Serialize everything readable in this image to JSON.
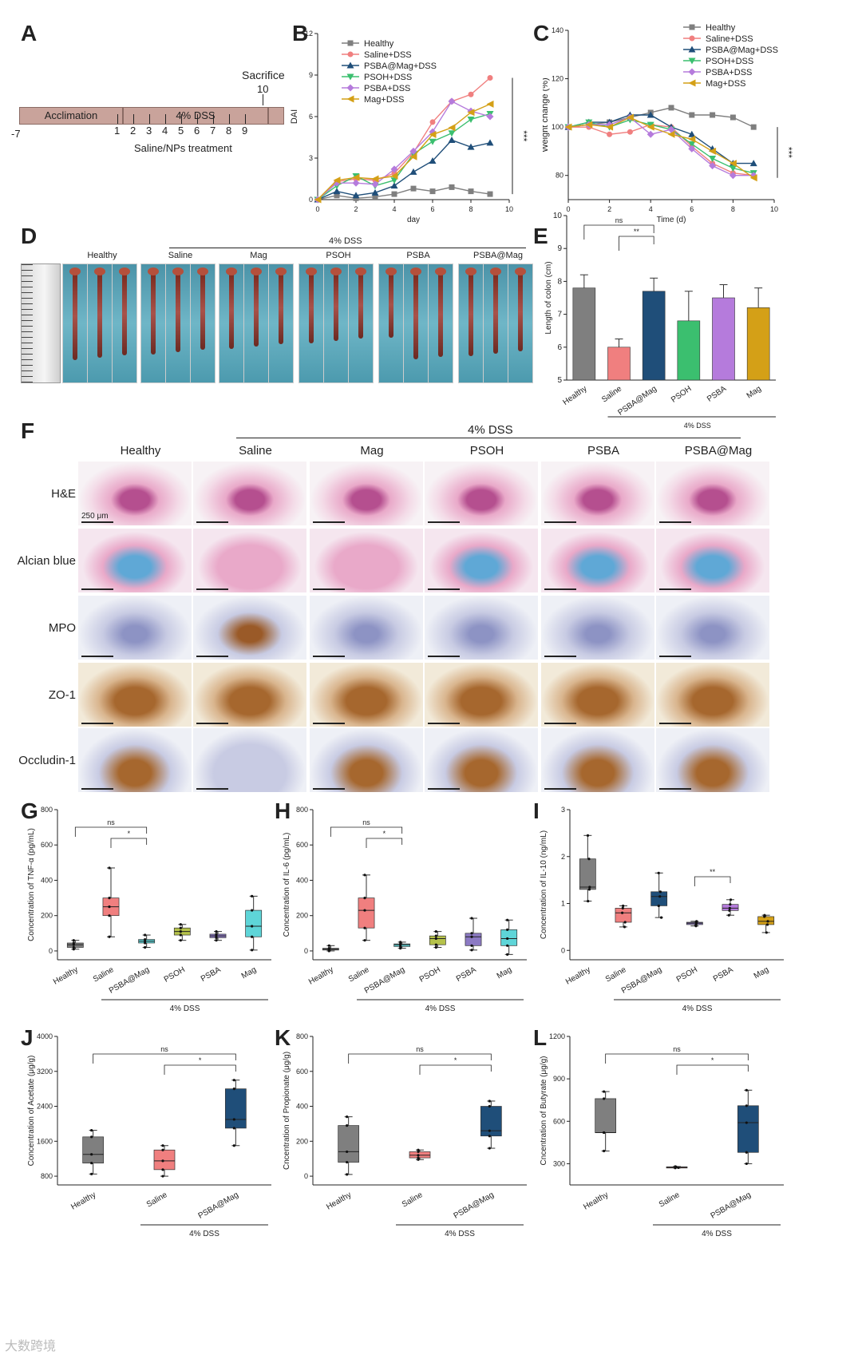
{
  "panels": {
    "A": {
      "letter": "A",
      "acclimation": "Acclimation",
      "dss": "4% DSS",
      "sacrifice": "Sacrifice",
      "sacrifice_day": "10",
      "start_day": "-7",
      "days": [
        "1",
        "2",
        "3",
        "4",
        "5",
        "6",
        "7",
        "8",
        "9"
      ],
      "treatment": "Saline/NPs treatment"
    },
    "D": {
      "letter": "D",
      "dss_label": "4% DSS",
      "groups": [
        "Healthy",
        "Saline",
        "Mag",
        "PSOH",
        "PSBA",
        "PSBA@Mag"
      ]
    },
    "F": {
      "letter": "F",
      "dss_label": "4% DSS",
      "columns": [
        "Healthy",
        "Saline",
        "Mag",
        "PSOH",
        "PSBA",
        "PSBA@Mag"
      ],
      "rows": [
        "H&E",
        "Alcian blue",
        "MPO",
        "ZO-1",
        "Occludin-1"
      ],
      "scale_bar": "250 μm"
    },
    "watermark": "大数跨境"
  },
  "colors": {
    "healthy": "#7f7f7f",
    "saline": "#f07f7f",
    "psba_mag": "#1f4e79",
    "psoh": "#3bbf6f",
    "psba": "#b57bdc",
    "mag": "#d4a017",
    "g_psoh": "#b5c24a",
    "g_psba": "#8c7ac4",
    "g_mag": "#5ed5d8",
    "hema": "#e9a9c9",
    "hema_dark": "#b54f8f",
    "alcian": "#5fa8d6",
    "ihc_blue": "#c8cbe3",
    "ihc_brown": "#a6672e"
  },
  "chart_data": [
    {
      "id": "B",
      "type": "line",
      "letter": "B",
      "xlabel": "day",
      "ylabel": "DAI",
      "xlim": [
        0,
        10
      ],
      "ylim": [
        0,
        12
      ],
      "xticks": [
        0,
        2,
        4,
        6,
        8,
        10
      ],
      "yticks": [
        0,
        3,
        6,
        9,
        12
      ],
      "x": [
        0,
        1,
        2,
        3,
        4,
        5,
        6,
        7,
        8,
        9
      ],
      "significance": "***",
      "series": [
        {
          "name": "Healthy",
          "color": "#7f7f7f",
          "marker": "square",
          "values": [
            0,
            0.3,
            0.1,
            0.2,
            0.4,
            0.8,
            0.6,
            0.9,
            0.6,
            0.4
          ]
        },
        {
          "name": "Saline+DSS",
          "color": "#f07f7f",
          "marker": "circle",
          "values": [
            0,
            1.3,
            1.5,
            1.4,
            1.9,
            3.4,
            5.6,
            7.1,
            7.6,
            8.8
          ]
        },
        {
          "name": "PSBA@Mag+DSS",
          "color": "#1f4e79",
          "marker": "triangle",
          "values": [
            0,
            0.6,
            0.3,
            0.5,
            1.0,
            2.0,
            2.8,
            4.3,
            3.8,
            4.1
          ]
        },
        {
          "name": "PSOH+DSS",
          "color": "#3bbf6f",
          "marker": "triangle-down",
          "values": [
            0,
            1.0,
            1.7,
            1.0,
            1.4,
            3.3,
            4.2,
            4.8,
            5.8,
            6.2
          ]
        },
        {
          "name": "PSBA+DSS",
          "color": "#b57bdc",
          "marker": "diamond",
          "values": [
            0,
            1.2,
            1.2,
            1.1,
            2.2,
            3.5,
            4.9,
            7.1,
            6.4,
            6.0
          ]
        },
        {
          "name": "Mag+DSS",
          "color": "#d4a017",
          "marker": "triangle-left",
          "values": [
            0,
            1.4,
            1.6,
            1.5,
            1.7,
            3.1,
            4.7,
            5.2,
            6.3,
            6.9
          ]
        }
      ]
    },
    {
      "id": "C",
      "type": "line",
      "letter": "C",
      "xlabel": "Time (d)",
      "ylabel": "Weight change (%)",
      "xlim": [
        0,
        10
      ],
      "ylim": [
        70,
        140
      ],
      "xticks": [
        0,
        2,
        4,
        6,
        8,
        10
      ],
      "yticks": [
        80,
        100,
        120,
        140
      ],
      "x": [
        0,
        1,
        2,
        3,
        4,
        5,
        6,
        7,
        8,
        9
      ],
      "significance": "***",
      "series": [
        {
          "name": "Healthy",
          "color": "#7f7f7f",
          "marker": "square",
          "values": [
            100,
            101,
            102,
            104,
            106,
            108,
            105,
            105,
            104,
            100
          ]
        },
        {
          "name": "Saline+DSS",
          "color": "#f07f7f",
          "marker": "circle",
          "values": [
            100,
            100,
            97,
            98,
            101,
            100,
            92,
            85,
            81,
            80
          ]
        },
        {
          "name": "PSBA@Mag+DSS",
          "color": "#1f4e79",
          "marker": "triangle",
          "values": [
            100,
            102,
            102,
            105,
            105,
            100,
            97,
            91,
            85,
            85
          ]
        },
        {
          "name": "PSOH+DSS",
          "color": "#3bbf6f",
          "marker": "triangle-down",
          "values": [
            100,
            102,
            100,
            103,
            101,
            99,
            93,
            87,
            83,
            81
          ]
        },
        {
          "name": "PSBA+DSS",
          "color": "#b57bdc",
          "marker": "diamond",
          "values": [
            100,
            101,
            101,
            104,
            97,
            99,
            91,
            84,
            80,
            80
          ]
        },
        {
          "name": "Mag+DSS",
          "color": "#d4a017",
          "marker": "triangle-left",
          "values": [
            100,
            101,
            100,
            104,
            100,
            97,
            95,
            90,
            85,
            79
          ]
        }
      ]
    },
    {
      "id": "E",
      "type": "bar",
      "letter": "E",
      "ylabel": "Length of colon (cm)",
      "ylim": [
        5,
        10
      ],
      "yticks": [
        5,
        6,
        7,
        8,
        9,
        10
      ],
      "categories": [
        "Healthy",
        "Saline",
        "PSBA@Mag",
        "PSOH",
        "PSBA",
        "Mag"
      ],
      "values": [
        7.8,
        6.0,
        7.7,
        6.8,
        7.5,
        7.2
      ],
      "errors": [
        0.4,
        0.25,
        0.4,
        0.9,
        0.4,
        0.6
      ],
      "colors": [
        "#7f7f7f",
        "#f07f7f",
        "#1f4e79",
        "#3bbf6f",
        "#b57bdc",
        "#d4a017"
      ],
      "group_label": "4% DSS",
      "comparisons": [
        {
          "from": 0,
          "to": 2,
          "label": "ns"
        },
        {
          "from": 1,
          "to": 2,
          "label": "**"
        }
      ]
    },
    {
      "id": "G",
      "type": "box",
      "letter": "G",
      "ylabel": "Concentration of TNF-α (pg/mL)",
      "ylim": [
        -50,
        800
      ],
      "yticks": [
        0,
        200,
        400,
        600,
        800
      ],
      "categories": [
        "Healthy",
        "Saline",
        "PSBA@Mag",
        "PSOH",
        "PSBA",
        "Mag"
      ],
      "boxes": [
        [
          10,
          20,
          35,
          45,
          60
        ],
        [
          80,
          200,
          250,
          300,
          470
        ],
        [
          20,
          45,
          55,
          65,
          90
        ],
        [
          60,
          90,
          110,
          130,
          150
        ],
        [
          60,
          75,
          85,
          95,
          110
        ],
        [
          5,
          80,
          140,
          230,
          310
        ]
      ],
      "colors": [
        "#7f7f7f",
        "#f07f7f",
        "#5ed5d8",
        "#b5c24a",
        "#8c7ac4",
        "#5ed5d8"
      ],
      "group_label": "4% DSS",
      "comparisons": [
        {
          "from": 0,
          "to": 2,
          "label": "ns"
        },
        {
          "from": 1,
          "to": 2,
          "label": "*"
        }
      ]
    },
    {
      "id": "H",
      "type": "box",
      "letter": "H",
      "ylabel": "Concentration of IL-6 (pg/mL)",
      "ylim": [
        -50,
        800
      ],
      "yticks": [
        0,
        200,
        400,
        600,
        800
      ],
      "categories": [
        "Healthy",
        "Saline",
        "PSBA@Mag",
        "PSOH",
        "PSBA",
        "Mag"
      ],
      "boxes": [
        [
          0,
          5,
          10,
          15,
          30
        ],
        [
          60,
          130,
          230,
          300,
          430
        ],
        [
          15,
          25,
          35,
          40,
          50
        ],
        [
          20,
          35,
          70,
          85,
          110
        ],
        [
          5,
          30,
          80,
          100,
          185
        ],
        [
          -20,
          30,
          70,
          120,
          175
        ]
      ],
      "colors": [
        "#7f7f7f",
        "#f07f7f",
        "#5ed5d8",
        "#b5c24a",
        "#8c7ac4",
        "#5ed5d8"
      ],
      "group_label": "4% DSS",
      "comparisons": [
        {
          "from": 0,
          "to": 2,
          "label": "ns"
        },
        {
          "from": 1,
          "to": 2,
          "label": "*"
        }
      ]
    },
    {
      "id": "I",
      "type": "box",
      "letter": "I",
      "ylabel": "Concentration of IL-10 (ng/mL)",
      "ylim": [
        -0.2,
        3.0
      ],
      "yticks": [
        0.0,
        1.0,
        2.0,
        3.0
      ],
      "categories": [
        "Healthy",
        "Saline",
        "PSBA@Mag",
        "PSOH",
        "PSBA",
        "Mag"
      ],
      "boxes": [
        [
          1.05,
          1.3,
          1.35,
          1.95,
          2.45
        ],
        [
          0.5,
          0.6,
          0.8,
          0.9,
          0.95
        ],
        [
          0.7,
          0.95,
          1.15,
          1.25,
          1.65
        ],
        [
          0.52,
          0.55,
          0.58,
          0.6,
          0.62
        ],
        [
          0.75,
          0.85,
          0.9,
          0.98,
          1.08
        ],
        [
          0.38,
          0.55,
          0.62,
          0.72,
          0.75
        ]
      ],
      "colors": [
        "#7f7f7f",
        "#f07f7f",
        "#1f4e79",
        "#8c7ac4",
        "#b57bdc",
        "#d4a017"
      ],
      "group_label": "4% DSS",
      "comparisons": [
        {
          "from": 3,
          "to": 4,
          "label": "**"
        }
      ]
    },
    {
      "id": "J",
      "type": "box",
      "letter": "J",
      "ylabel": "Concentration of Acetate (μg/g)",
      "ylim": [
        600,
        4000
      ],
      "yticks": [
        800,
        1600,
        2400,
        3200,
        4000
      ],
      "categories": [
        "Healthy",
        "Saline",
        "PSBA@Mag"
      ],
      "boxes": [
        [
          850,
          1100,
          1300,
          1700,
          1850
        ],
        [
          800,
          950,
          1150,
          1400,
          1500
        ],
        [
          1500,
          1900,
          2100,
          2800,
          3000
        ]
      ],
      "colors": [
        "#7f7f7f",
        "#f07f7f",
        "#1f4e79"
      ],
      "group_label": "4% DSS",
      "comparisons": [
        {
          "from": 0,
          "to": 2,
          "label": "ns"
        },
        {
          "from": 1,
          "to": 2,
          "label": "*"
        }
      ]
    },
    {
      "id": "K",
      "type": "box",
      "letter": "K",
      "ylabel": "Cncentration of Propionate (μg/g)",
      "ylim": [
        -50,
        800
      ],
      "yticks": [
        0,
        200,
        400,
        600,
        800
      ],
      "categories": [
        "Healthy",
        "Saline",
        "PSBA@Mag"
      ],
      "boxes": [
        [
          10,
          80,
          140,
          290,
          340
        ],
        [
          95,
          105,
          120,
          140,
          150
        ],
        [
          160,
          230,
          260,
          400,
          430
        ]
      ],
      "colors": [
        "#7f7f7f",
        "#f07f7f",
        "#1f4e79"
      ],
      "group_label": "4% DSS",
      "comparisons": [
        {
          "from": 0,
          "to": 2,
          "label": "ns"
        },
        {
          "from": 1,
          "to": 2,
          "label": "*"
        }
      ]
    },
    {
      "id": "L",
      "type": "box",
      "letter": "L",
      "ylabel": "Cncentration of Butyrate (μg/g)",
      "ylim": [
        150,
        1200
      ],
      "yticks": [
        300,
        600,
        900,
        1200
      ],
      "categories": [
        "Healthy",
        "Saline",
        "PSBA@Mag"
      ],
      "boxes": [
        [
          390,
          520,
          520,
          760,
          810
        ],
        [
          270,
          272,
          275,
          278,
          280
        ],
        [
          300,
          380,
          590,
          710,
          820
        ]
      ],
      "colors": [
        "#7f7f7f",
        "#f07f7f",
        "#1f4e79"
      ],
      "group_label": "4% DSS",
      "comparisons": [
        {
          "from": 0,
          "to": 2,
          "label": "ns"
        },
        {
          "from": 1,
          "to": 2,
          "label": "*"
        }
      ]
    }
  ]
}
